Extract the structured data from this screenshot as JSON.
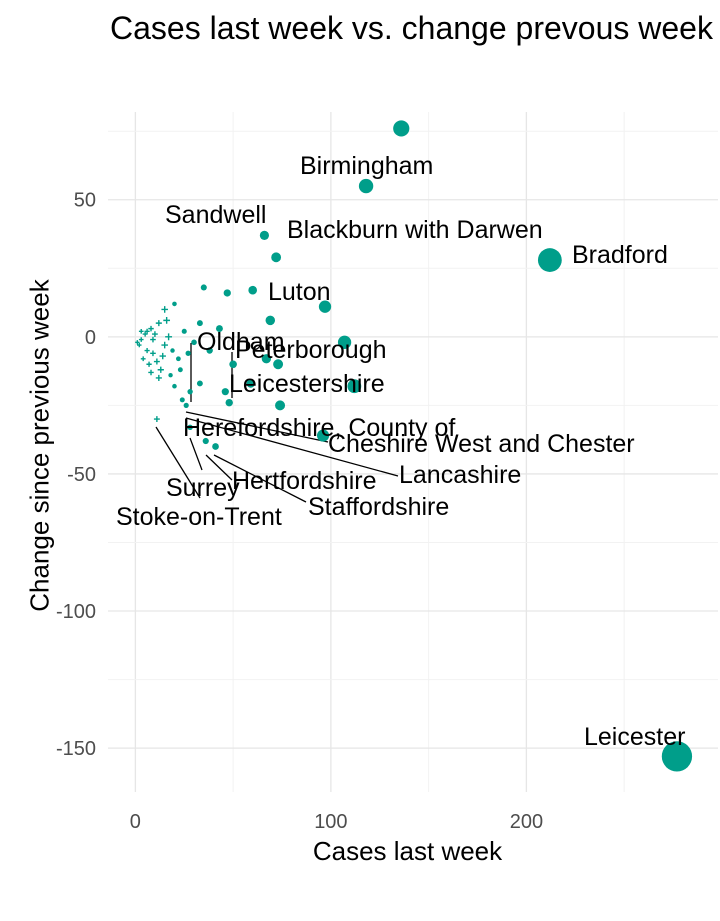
{
  "chart_data": {
    "type": "scatter",
    "title": "Cases last week vs. change prevous week",
    "xlabel": "Cases last week",
    "ylabel": "Change since previous week",
    "xlim": [
      -14,
      298
    ],
    "ylim": [
      -166,
      82
    ],
    "x_ticks": [
      0,
      100,
      200
    ],
    "y_ticks": [
      50,
      0,
      -50,
      -100,
      -150
    ],
    "grid": true,
    "point_color": "#009E8A",
    "labeled_points": [
      {
        "name": "Leicester",
        "x": 277,
        "y": -153
      },
      {
        "name": "Bradford",
        "x": 212,
        "y": 28
      },
      {
        "name": "Birmingham",
        "x": 136,
        "y": 76
      },
      {
        "name": "Sandwell",
        "x": 118,
        "y": 55
      },
      {
        "name": "Blackburn with Darwen",
        "x": 66,
        "y": 37
      },
      {
        "name": "Luton",
        "x": 97,
        "y": 11
      },
      {
        "name": "Peterborough",
        "x": 107,
        "y": -2
      },
      {
        "name": "Leicestershire",
        "x": 112,
        "y": -18
      },
      {
        "name": "Oldham",
        "x": 28,
        "y": -20
      },
      {
        "name": "Cheshire West and Chester",
        "x": 96,
        "y": -36
      },
      {
        "name": "Herefordshire, County of",
        "x": 24,
        "y": -23
      },
      {
        "name": "Lancashire",
        "x": 26,
        "y": -25
      },
      {
        "name": "Hertfordshire",
        "x": 36,
        "y": -38
      },
      {
        "name": "Staffordshire",
        "x": 41,
        "y": -40
      },
      {
        "name": "Surrey",
        "x": 28,
        "y": -33
      },
      {
        "name": "Stoke-on-Trent",
        "x": 11,
        "y": -30
      }
    ],
    "other_points": [
      {
        "x": 72,
        "y": 29
      },
      {
        "x": 60,
        "y": 17
      },
      {
        "x": 35,
        "y": 18
      },
      {
        "x": 47,
        "y": 16
      },
      {
        "x": 69,
        "y": 6
      },
      {
        "x": 33,
        "y": 5
      },
      {
        "x": 43,
        "y": 3
      },
      {
        "x": 30,
        "y": -2
      },
      {
        "x": 67,
        "y": -8
      },
      {
        "x": 73,
        "y": -10
      },
      {
        "x": 59,
        "y": -17
      },
      {
        "x": 46,
        "y": -20
      },
      {
        "x": 74,
        "y": -25
      },
      {
        "x": 48,
        "y": -24
      },
      {
        "x": 33,
        "y": -17
      },
      {
        "x": 50,
        "y": -10
      },
      {
        "x": 38,
        "y": -5
      },
      {
        "x": 25,
        "y": 2
      },
      {
        "x": 22,
        "y": -8
      },
      {
        "x": 18,
        "y": -14
      },
      {
        "x": 20,
        "y": 12
      },
      {
        "x": 15,
        "y": 10
      },
      {
        "x": 12,
        "y": 5
      },
      {
        "x": 8,
        "y": 3
      },
      {
        "x": 5,
        "y": 1
      },
      {
        "x": 3,
        "y": -1
      },
      {
        "x": 2,
        "y": -3
      },
      {
        "x": 6,
        "y": -5
      },
      {
        "x": 9,
        "y": -6
      },
      {
        "x": 4,
        "y": -8
      },
      {
        "x": 7,
        "y": -10
      },
      {
        "x": 11,
        "y": -9
      },
      {
        "x": 13,
        "y": -12
      },
      {
        "x": 15,
        "y": -3
      },
      {
        "x": 17,
        "y": 0
      },
      {
        "x": 10,
        "y": 1
      },
      {
        "x": 1,
        "y": -2
      },
      {
        "x": 3,
        "y": 2
      },
      {
        "x": 14,
        "y": -7
      },
      {
        "x": 19,
        "y": -5
      },
      {
        "x": 23,
        "y": -12
      },
      {
        "x": 12,
        "y": -15
      },
      {
        "x": 8,
        "y": -13
      },
      {
        "x": 27,
        "y": -6
      },
      {
        "x": 16,
        "y": 6
      },
      {
        "x": 20,
        "y": -18
      },
      {
        "x": 6,
        "y": 2
      },
      {
        "x": 9,
        "y": -1
      }
    ]
  }
}
